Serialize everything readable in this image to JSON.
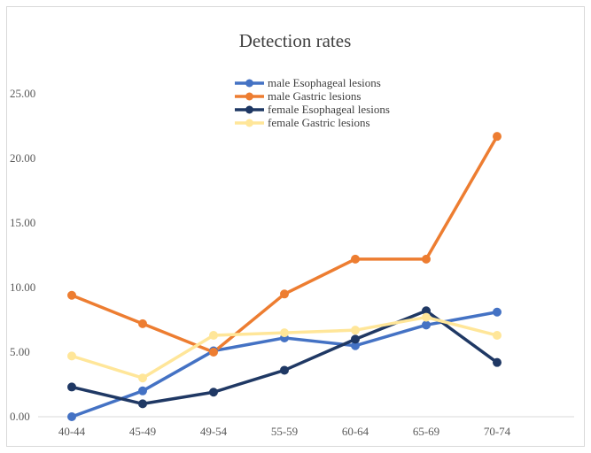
{
  "chart_data": {
    "type": "line",
    "title": "Detection rates",
    "xlabel": "",
    "ylabel": "",
    "categories": [
      "40-44",
      "45-49",
      "49-54",
      "55-59",
      "60-64",
      "65-69",
      "70-74"
    ],
    "yticks": [
      "0.00",
      "5.00",
      "10.00",
      "15.00",
      "20.00",
      "25.00"
    ],
    "ylim": [
      0,
      25
    ],
    "grid": false,
    "legend_position": "top",
    "series": [
      {
        "name": "male Esophageal lesions",
        "color": "#4472c4",
        "values": [
          0.0,
          2.0,
          5.1,
          6.1,
          5.5,
          7.1,
          8.1
        ]
      },
      {
        "name": "male Gastric lesions",
        "color": "#ed7d31",
        "values": [
          9.4,
          7.2,
          5.0,
          9.5,
          12.2,
          12.2,
          21.7
        ]
      },
      {
        "name": "female Esophageal lesions",
        "color": "#1f3864",
        "values": [
          2.3,
          1.0,
          1.9,
          3.6,
          6.0,
          8.2,
          4.2
        ]
      },
      {
        "name": "female Gastric lesions",
        "color": "#ffe699",
        "values": [
          4.7,
          3.0,
          6.3,
          6.5,
          6.7,
          7.7,
          6.3
        ]
      }
    ]
  }
}
